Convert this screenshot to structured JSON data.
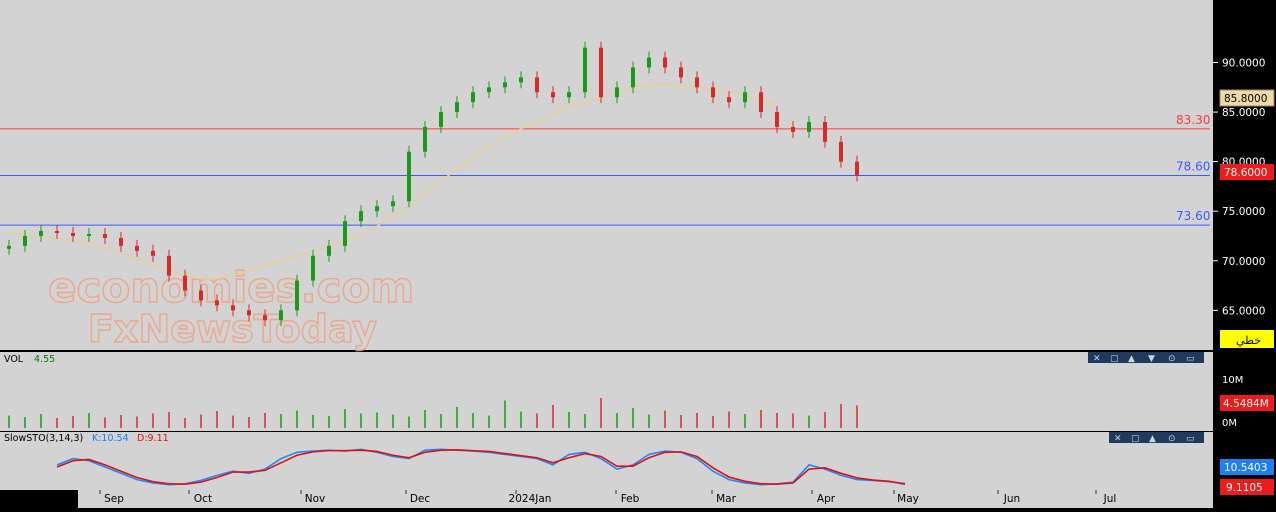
{
  "chart_data": {
    "type": "candlestick",
    "price_axis": {
      "ticks": [
        "90.0000",
        "85.0000",
        "80.0000",
        "75.0000",
        "70.0000",
        "65.0000"
      ],
      "range": [
        61.5,
        95.5
      ]
    },
    "current_price_label": "78.6000",
    "ma_price_label": "85.8000",
    "horizontal_lines": [
      {
        "value": 83.3,
        "label": "83.30",
        "color": "#ff3b3b"
      },
      {
        "value": 78.6,
        "label": "78.60",
        "color": "#3b5bff"
      },
      {
        "value": 73.6,
        "label": "73.60",
        "color": "#3b5bff"
      }
    ],
    "trendline_button": "خطي",
    "watermark": {
      "line1": "economies.com",
      "line2": "FxNewsToday"
    },
    "series": [
      {
        "name": "price_close",
        "values": [
          71.5,
          72.5,
          73.0,
          72.8,
          72.5,
          72.7,
          72.3,
          71.5,
          71.0,
          70.5,
          68.5,
          67.0,
          66.0,
          65.5,
          65.0,
          64.5,
          64.0,
          65.0,
          68.0,
          70.5,
          71.5,
          74.0,
          75.0,
          75.5,
          76.0,
          81.0,
          83.5,
          85.0,
          86.0,
          87.0,
          87.5,
          88.0,
          88.5,
          87.0,
          86.5,
          87.0,
          91.5,
          86.5,
          87.5,
          89.5,
          90.5,
          89.5,
          88.5,
          87.5,
          86.5,
          86.0,
          87.0,
          85.0,
          83.5,
          83.0,
          84.0,
          82.0,
          80.0,
          78.6
        ]
      },
      {
        "name": "ma_line",
        "values": [
          72.8,
          72.6,
          72.4,
          72.2,
          72.0,
          71.7,
          71.3,
          70.8,
          70.2,
          69.6,
          69.0,
          68.5,
          68.2,
          68.2,
          68.5,
          69.0,
          69.5,
          70.0,
          70.5,
          71.0,
          71.5,
          72.0,
          72.5,
          73.5,
          74.5,
          75.5,
          76.8,
          78.0,
          79.3,
          80.5,
          81.5,
          82.5,
          83.3,
          84.0,
          84.8,
          85.5,
          86.0,
          86.5,
          87.0,
          87.5,
          87.7,
          87.8,
          87.7,
          87.5,
          87.3,
          87.0,
          86.7,
          86.3,
          85.8
        ]
      }
    ],
    "volume": {
      "label": "VOL",
      "value": "4.55",
      "ticks": [
        "10M",
        "0M"
      ],
      "current_label": "4.5484M",
      "bars": [
        2.5,
        2.2,
        2.8,
        2.0,
        2.4,
        3.0,
        2.1,
        2.6,
        2.3,
        2.9,
        3.2,
        2.0,
        2.7,
        3.4,
        2.5,
        2.2,
        3.0,
        2.8,
        3.5,
        2.6,
        2.4,
        3.8,
        2.9,
        3.1,
        2.7,
        2.3,
        3.6,
        2.8,
        4.2,
        3.0,
        2.5,
        5.5,
        3.3,
        2.9,
        4.6,
        3.2,
        2.8,
        6.0,
        3.0,
        4.0,
        2.7,
        3.5,
        2.6,
        3.0,
        2.4,
        3.3,
        2.8,
        3.6,
        3.0,
        2.9,
        2.5,
        3.2,
        4.8,
        4.5
      ]
    },
    "stochastic": {
      "label": "SlowSTO(3,14,3)",
      "k_label": "K:10.54",
      "d_label": "D:9.11",
      "k_current": "10.5403",
      "d_current": "9.1105",
      "k_values": [
        55,
        70,
        65,
        50,
        35,
        20,
        12,
        8,
        10,
        18,
        30,
        40,
        35,
        45,
        70,
        85,
        88,
        90,
        88,
        92,
        85,
        75,
        70,
        90,
        92,
        90,
        88,
        85,
        80,
        75,
        70,
        55,
        80,
        85,
        70,
        45,
        55,
        80,
        88,
        85,
        70,
        40,
        20,
        12,
        8,
        10,
        14,
        55,
        45,
        30,
        20,
        18,
        15,
        11
      ],
      "d_values": [
        50,
        65,
        68,
        55,
        40,
        25,
        15,
        10,
        9,
        14,
        25,
        38,
        38,
        42,
        60,
        78,
        86,
        89,
        89,
        90,
        87,
        78,
        72,
        85,
        90,
        91,
        89,
        87,
        82,
        77,
        72,
        60,
        72,
        82,
        75,
        52,
        52,
        72,
        85,
        86,
        75,
        48,
        26,
        16,
        10,
        9,
        12,
        45,
        48,
        35,
        24,
        19,
        16,
        9
      ]
    },
    "x_axis_labels": [
      "Sep",
      "Oct",
      "Nov",
      "Dec",
      "2024Jan",
      "Feb",
      "Mar",
      "Apr",
      "May",
      "Jun",
      "Jul"
    ]
  }
}
